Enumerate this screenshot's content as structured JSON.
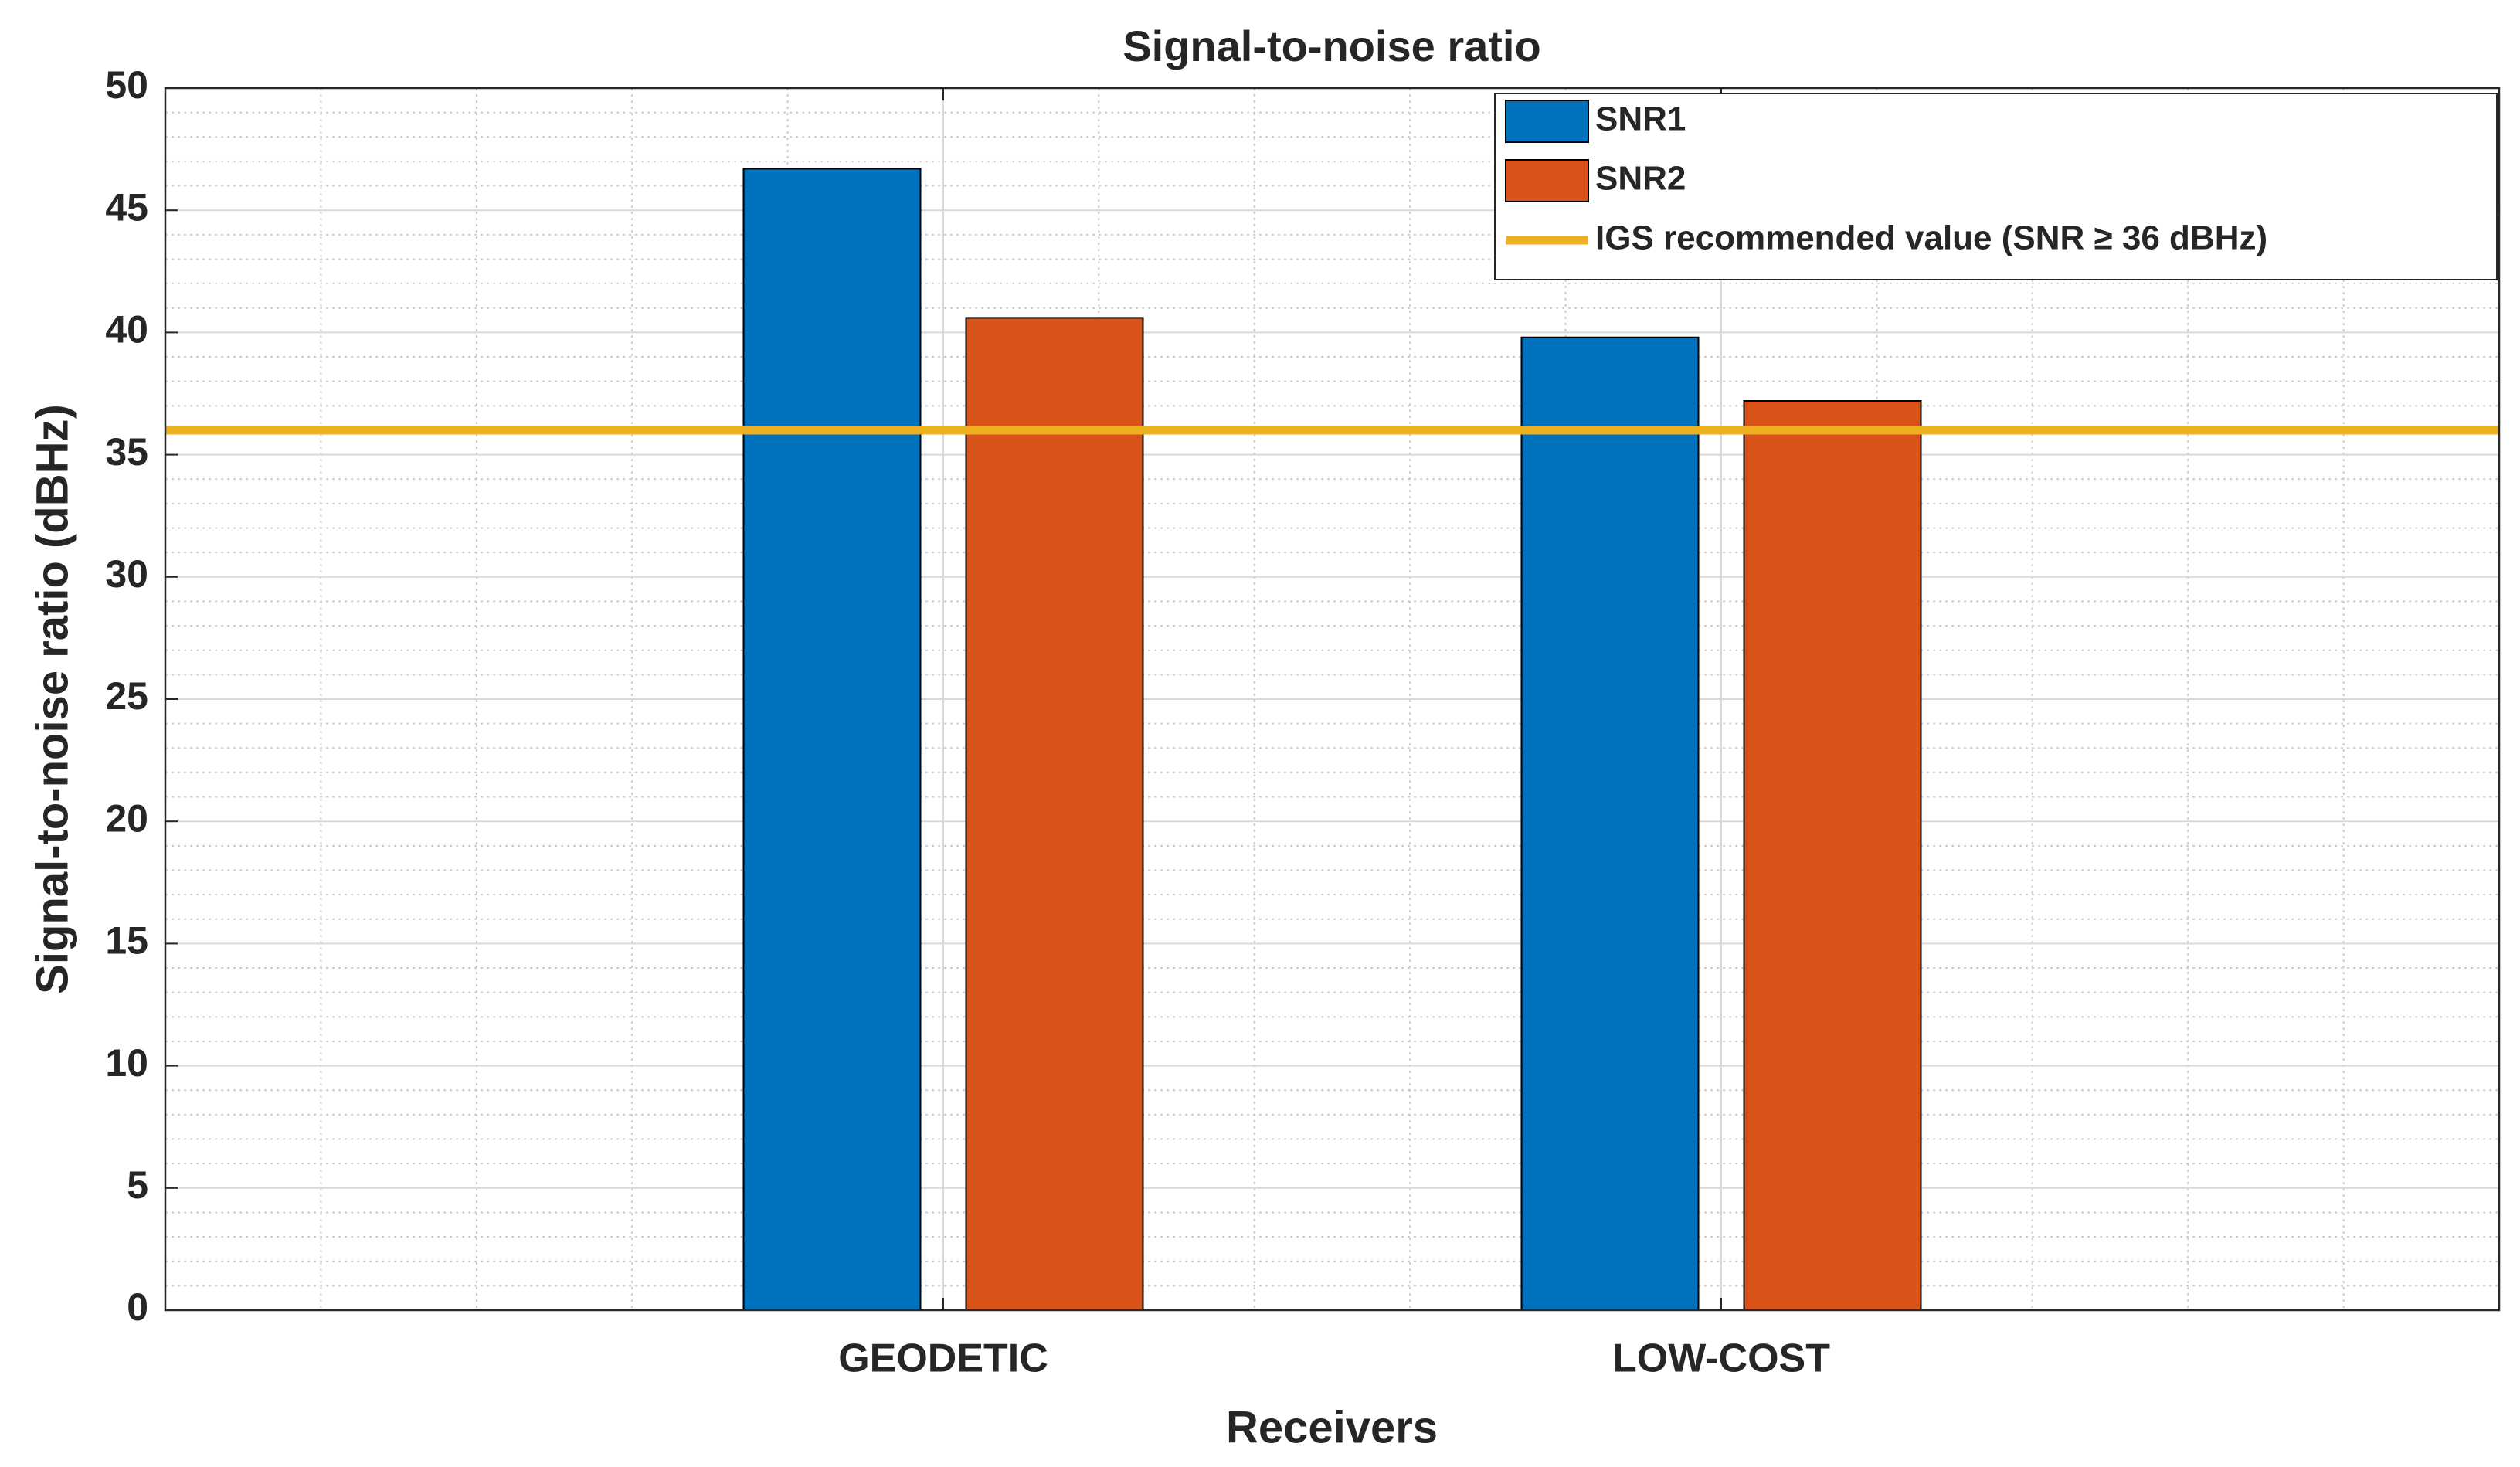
{
  "chart_data": {
    "type": "bar",
    "title": "Signal-to-noise ratio",
    "x_label": "Receivers",
    "y_label": "Signal-to-noise ratio (dBHz)",
    "categories": [
      "GEODETIC",
      "LOW-COST"
    ],
    "series": [
      {
        "name": "SNR1",
        "color": "#0072BD",
        "values": [
          46.7,
          39.8
        ]
      },
      {
        "name": "SNR2",
        "color": "#D95319",
        "values": [
          40.6,
          37.2
        ]
      }
    ],
    "reference_line": {
      "name": "IGS recommended value (SNR ≥  36 dBHz)",
      "value": 36,
      "color": "#EDB120"
    },
    "ylim": [
      0,
      50
    ],
    "yticks": [
      0,
      5,
      10,
      15,
      20,
      25,
      30,
      35,
      40,
      45,
      50
    ],
    "grid": true,
    "minor_grid": true,
    "legend": "upper right"
  }
}
